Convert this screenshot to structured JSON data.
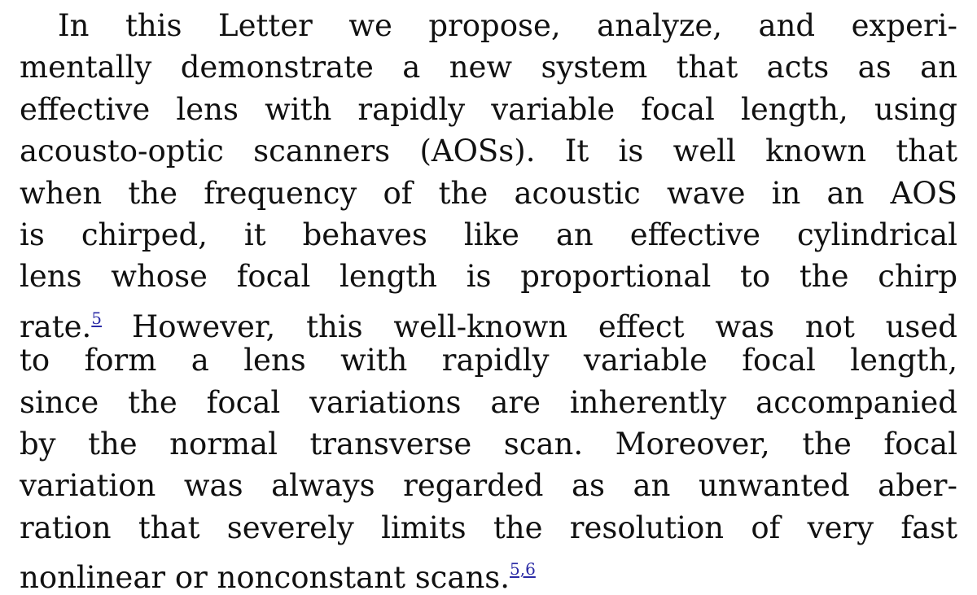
{
  "paragraph": {
    "lines": [
      "In this Letter we propose, analyze, and experi-",
      "mentally demonstrate a new system that acts as an",
      "effective lens with rapidly variable focal length, using",
      "acousto-optic scanners (AOSs).  It is well known that",
      "when the frequency of the acoustic wave in an AOS",
      "is chirped, it behaves like an effective cylindrical",
      "lens whose focal length is proportional to the chirp",
      "However, this well-known effect was not used",
      "to form a lens with rapidly variable focal length,",
      "since the focal variations are inherently accompanied",
      "by the normal transverse scan.  Moreover, the focal",
      "variation was always regarded as an unwanted aber-",
      "ration that severely limits the resolution of very fast",
      "nonlinear or nonconstant scans."
    ],
    "line8_prefix": "rate.",
    "ref_5": "5",
    "ref_5_6": "5,6"
  },
  "colors": {
    "text": "#111111",
    "reference_link": "#2a2aa5",
    "background": "#ffffff"
  }
}
